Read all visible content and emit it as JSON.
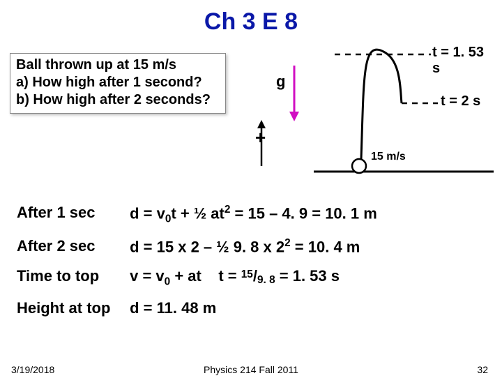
{
  "title": {
    "text": "Ch 3 E 8",
    "color": "#0a18a8"
  },
  "problem": {
    "lines": [
      "Ball thrown up at 15 m/s",
      "a) How high after 1 second?",
      "b) How high after 2 seconds?"
    ],
    "text_color": "#000000"
  },
  "diagram": {
    "g_label": "g",
    "g_arrow_color": "#d10fc2",
    "plus": "+",
    "plus_color": "#000000",
    "t1_label": "t = 1. 53 s",
    "t2_label": "t = 2 s",
    "label_color": "#000000",
    "speed_label": "15 m/s",
    "ground_color": "#000000",
    "ball_stroke": "#000000",
    "traj_color": "#000000",
    "dash_color": "#000000",
    "up_arrow_color": "#000000"
  },
  "calc": {
    "color": "#000000",
    "rows": [
      {
        "label": "After 1 sec",
        "body_html": "d = v<sub>0</sub>t + ½ at<sup>2</sup> = 15 – 4. 9 = 10. 1 m"
      },
      {
        "label": "After 2 sec",
        "body_html": "d = 15 x 2 – ½ 9. 8 x 2<sup>2</sup> = 10. 4 m"
      },
      {
        "label": "Time to top",
        "body_html": "v = v<sub>0</sub> + at&nbsp;&nbsp;&nbsp;&nbsp;t = <span class=\"frac-num\">15</span>/<span class=\"frac-den\">9. 8</span> = 1. 53 s"
      },
      {
        "label": "Height at top",
        "body_html": "d = 11. 48 m"
      }
    ]
  },
  "footer": {
    "date": "3/19/2018",
    "center": "Physics 214 Fall 2011",
    "page": "32",
    "color": "#000000"
  },
  "style": {
    "title_fontsize": 34,
    "body_fontsize": 22
  }
}
